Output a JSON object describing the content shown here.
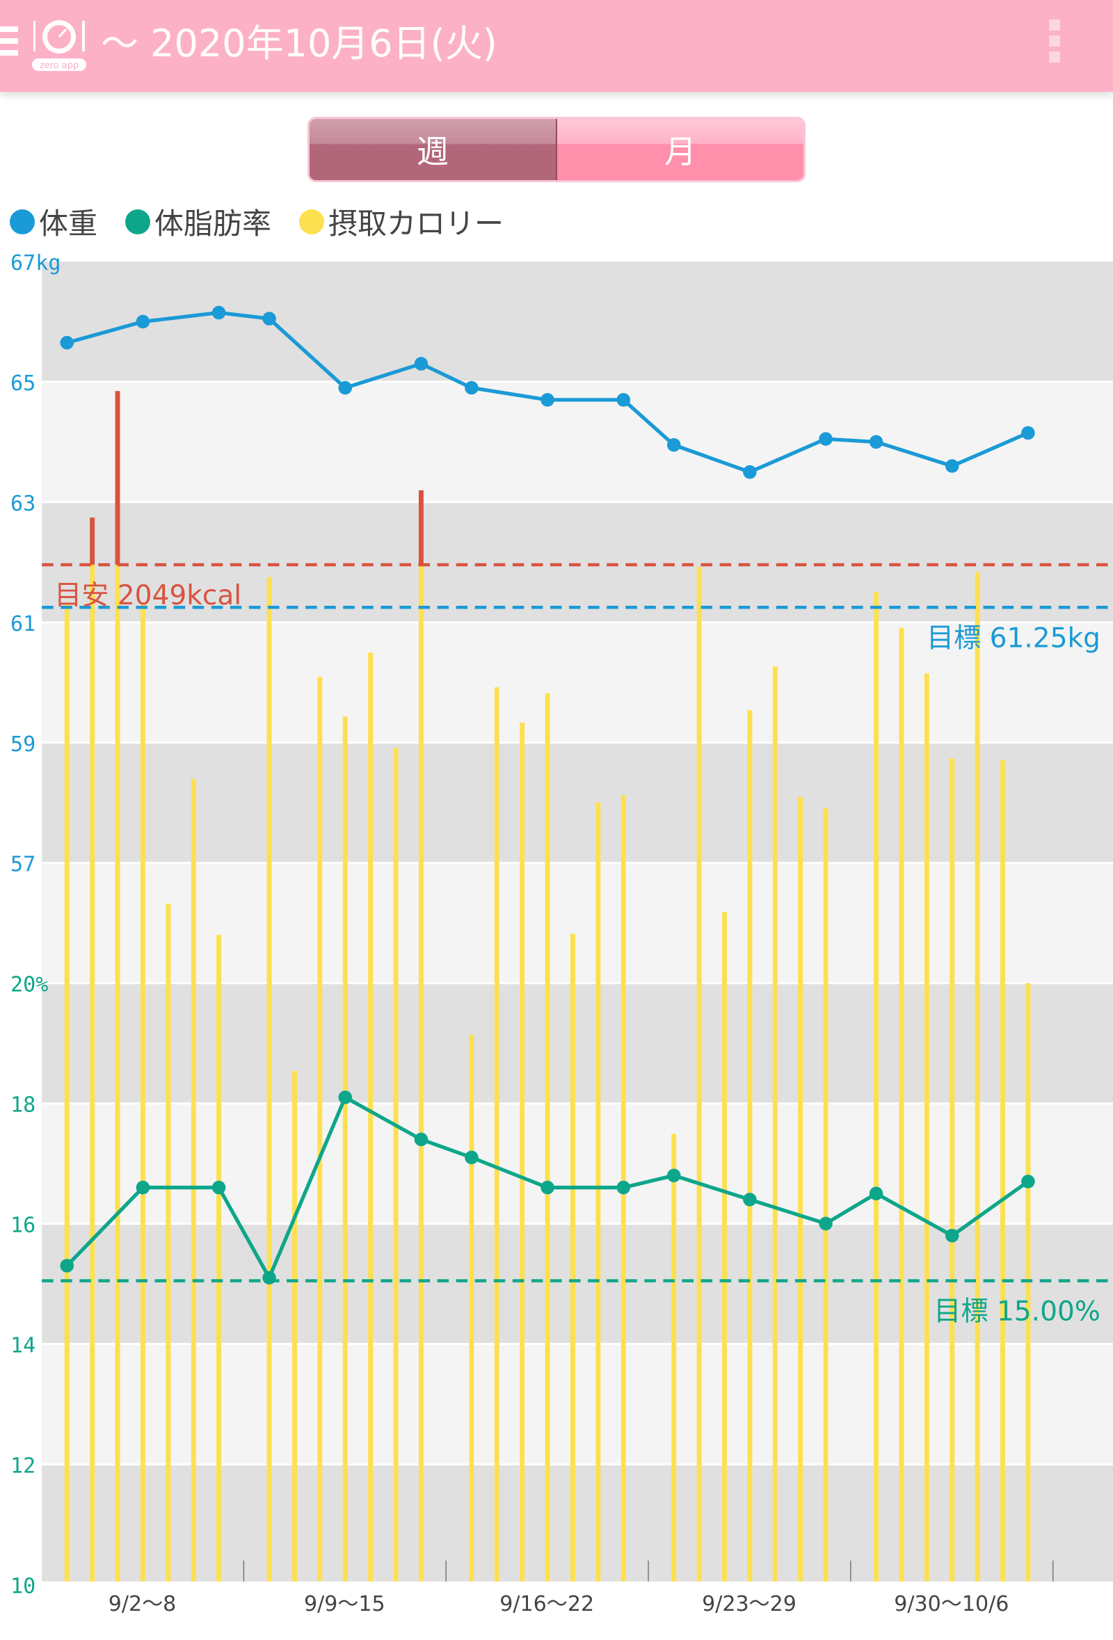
{
  "header": {
    "title": "～ 2020年10月6日(火)",
    "logo_text": "zero app"
  },
  "toggle": {
    "week": "週",
    "month": "月",
    "selected": "week"
  },
  "legend": [
    {
      "label": "体重",
      "color": "#1a9ad6"
    },
    {
      "label": "体脂肪率",
      "color": "#0ea68a"
    },
    {
      "label": "摂取カロリー",
      "color": "#fde04f"
    }
  ],
  "chart_data": {
    "type": "line",
    "x_labels": [
      "9/2〜8",
      "9/9〜15",
      "9/16〜22",
      "9/23〜29",
      "9/30〜10/6"
    ],
    "days": 35,
    "weight_axis": {
      "ticks": [
        "67kg",
        "65",
        "63",
        "61",
        "59",
        "57"
      ],
      "ylim": [
        55,
        67
      ]
    },
    "fat_axis": {
      "ticks": [
        "20%",
        "18",
        "16",
        "14",
        "12",
        "10"
      ],
      "ylim": [
        10,
        20
      ]
    },
    "calorie_axis": {
      "ylim": [
        0,
        2660
      ]
    },
    "weight": {
      "day_index": [
        0,
        3,
        6,
        7,
        10,
        13,
        14,
        17,
        20,
        21,
        24,
        27,
        28,
        31,
        34
      ],
      "values": [
        65.65,
        66.0,
        66.15,
        66.05,
        64.9,
        65.3,
        64.9,
        64.7,
        64.7,
        63.95,
        63.5,
        64.05,
        64.0,
        63.6,
        64.15
      ]
    },
    "body_fat": {
      "day_index": [
        0,
        3,
        6,
        7,
        10,
        13,
        14,
        17,
        20,
        21,
        24,
        27,
        28,
        31,
        34
      ],
      "values": [
        15.25,
        16.55,
        16.55,
        15.05,
        18.05,
        17.35,
        17.05,
        16.55,
        16.55,
        16.75,
        16.35,
        15.95,
        16.45,
        15.75,
        16.65
      ]
    },
    "calories": [
      1969,
      2144,
      2399,
      1969,
      1366,
      1617,
      1303,
      2024,
      1029,
      1823,
      1743,
      1872,
      1680,
      2199,
      1102,
      1802,
      1731,
      1790,
      1305,
      1570,
      1585,
      902,
      2045,
      1349,
      1756,
      1844,
      1581,
      1558,
      1994,
      1922,
      1830,
      1659,
      2034,
      1655,
      1206
    ],
    "calorie_target": {
      "value": 2049,
      "label": "目安 2049kcal",
      "color": "#d9533f"
    },
    "weight_target": {
      "value": 61.25,
      "label": "目標 61.25kg",
      "color": "#1a9ad6"
    },
    "fat_target": {
      "value": 15.0,
      "label": "目標 15.00%",
      "color": "#0ea68a"
    }
  }
}
